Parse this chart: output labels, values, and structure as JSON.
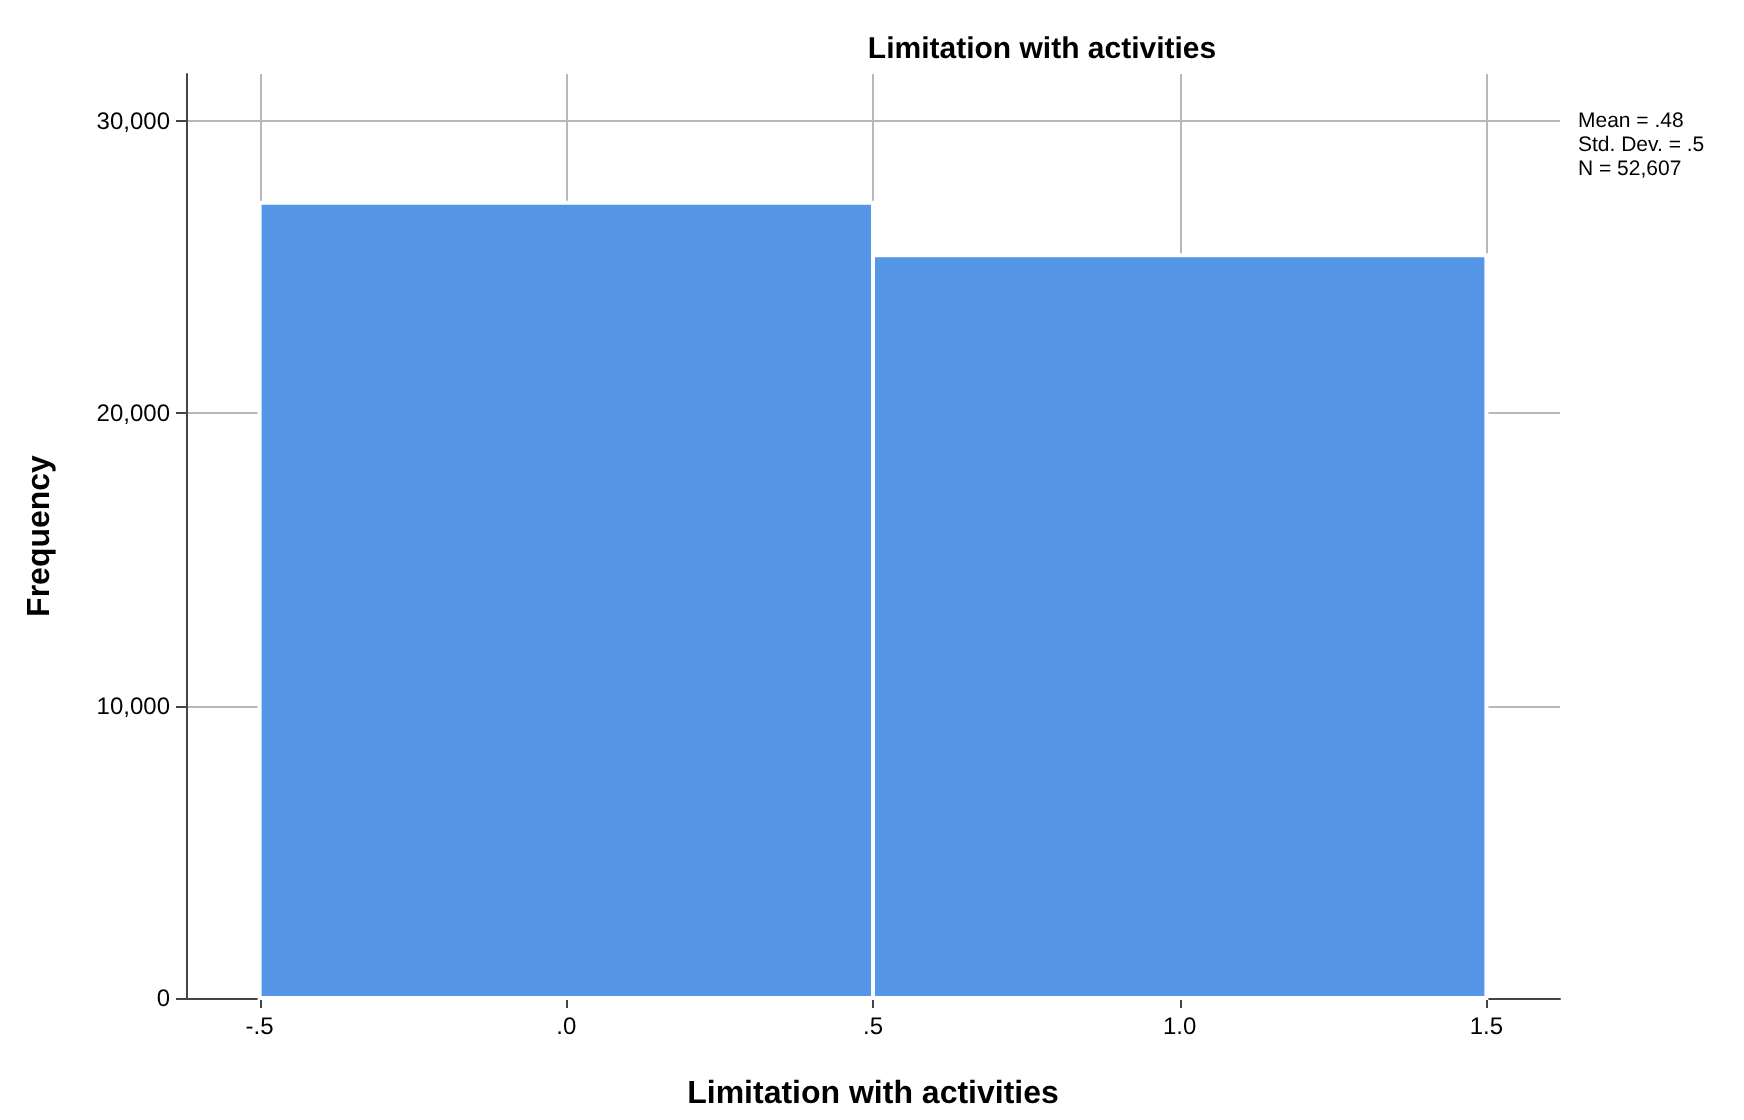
{
  "chart_data": {
    "type": "histogram",
    "title": "Limitation with activities",
    "xlabel": "Limitation with activities",
    "ylabel": "Frequency",
    "bins": [
      -0.5,
      0.5,
      1.5
    ],
    "values": [
      27200,
      25400
    ],
    "color": "#5596e6",
    "xlim": [
      -0.62,
      1.62
    ],
    "xticks": [
      {
        "value": -0.5,
        "label": "-.5"
      },
      {
        "value": 0,
        "label": ".0"
      },
      {
        "value": 0.5,
        "label": ".5"
      },
      {
        "value": 1,
        "label": "1.0"
      },
      {
        "value": 1.5,
        "label": "1.5"
      }
    ],
    "ylim": [
      0,
      31600
    ],
    "yticks": [
      {
        "value": 0,
        "label": "0"
      },
      {
        "value": 10000,
        "label": "10,000"
      },
      {
        "value": 20000,
        "label": "20,000"
      },
      {
        "value": 30000,
        "label": "30,000"
      }
    ],
    "grid": true,
    "annotations": [
      "Mean = .48",
      "Std. Dev. = .5",
      "N = 52,607"
    ]
  }
}
